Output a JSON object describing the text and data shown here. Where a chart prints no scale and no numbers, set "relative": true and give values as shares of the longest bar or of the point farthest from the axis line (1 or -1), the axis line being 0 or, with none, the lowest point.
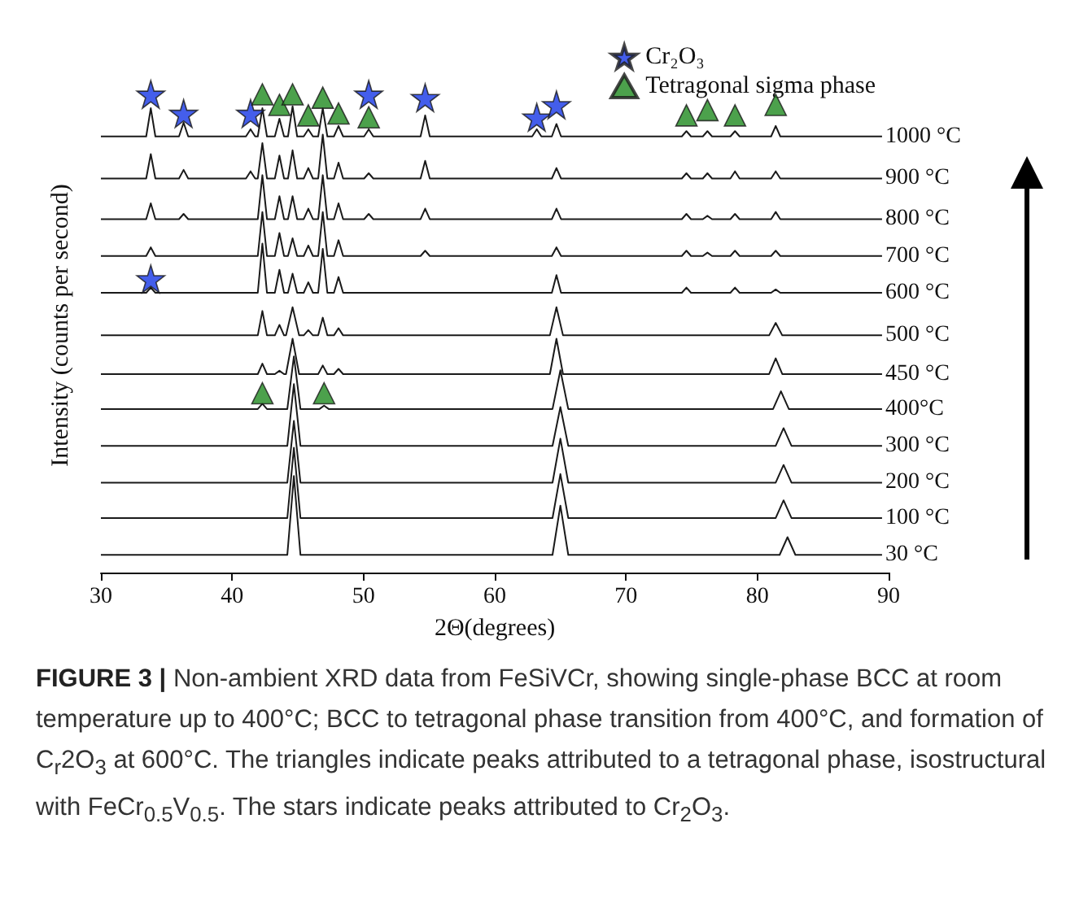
{
  "chart_data": {
    "type": "line",
    "relative": true,
    "title": "FIGURE 3 |",
    "xlabel": "2Θ(degrees)",
    "ylabel": "Intensity (counts per second)",
    "xlim": [
      30,
      90
    ],
    "xticks": [
      30,
      40,
      50,
      60,
      70,
      80,
      90
    ],
    "marker": "none",
    "legend": "top right",
    "annotations": [
      "Non-ambient XRD data from FeSiVCr, showing single-phase BCC at room temperature up to 400°C; BCC to tetragonal phase transition from 400°C, and formation of C$_{r}$2O$_{3}$ at 600°C. The triangles indicate peaks attributed to a tetragonal phase, isostructural with FeCr$_{0.5}$V$_{0.5}$. The stars indicate peaks attributed to Cr$_{2}$O$_{3}$."
    ],
    "series": [
      {
        "name": "1000 °C",
        "color": "#1a1a1a",
        "x": [
          30,
          33.45,
          33.8,
          34.15,
          35.95,
          36.3,
          36.65,
          41.05,
          41.4,
          41.75,
          41.95,
          42.3,
          42.65,
          43.25,
          43.6,
          43.95,
          44.25,
          44.6,
          44.95,
          45.45,
          45.8,
          46.15,
          46.55,
          46.9,
          47.25,
          47.75,
          48.1,
          48.45,
          50.05,
          50.4,
          50.75,
          54.35,
          54.7,
          55.05,
          62.85,
          63.2,
          63.55,
          64.35,
          64.7,
          65.05,
          74.25,
          74.6,
          74.95,
          75.85,
          76.2,
          76.55,
          77.95,
          78.3,
          78.65,
          81.05,
          81.4,
          81.75,
          89.5
        ],
        "values": [
          0.912,
          0.912,
          0.971,
          0.912,
          0.912,
          0.941,
          0.912,
          0.912,
          0.927,
          0.912,
          0.912,
          0.971,
          0.912,
          0.912,
          0.949,
          0.912,
          0.912,
          0.975,
          0.912,
          0.912,
          0.927,
          0.912,
          0.912,
          0.971,
          0.912,
          0.912,
          0.934,
          0.912,
          0.912,
          0.927,
          0.912,
          0.912,
          0.956,
          0.912,
          0.912,
          0.927,
          0.912,
          0.912,
          0.938,
          0.912,
          0.912,
          0.923,
          0.912,
          0.912,
          0.923,
          0.912,
          0.912,
          0.923,
          0.912,
          0.912,
          0.934,
          0.912,
          0.912
        ]
      },
      {
        "name": "900 °C",
        "color": "#1a1a1a",
        "x": [
          30,
          33.45,
          33.8,
          34.15,
          35.95,
          36.3,
          36.65,
          41.05,
          41.4,
          41.75,
          41.95,
          42.3,
          42.65,
          43.25,
          43.6,
          43.95,
          44.25,
          44.6,
          44.95,
          45.45,
          45.8,
          46.15,
          46.55,
          46.9,
          47.25,
          47.75,
          48.1,
          48.45,
          50.05,
          50.4,
          50.75,
          54.35,
          54.7,
          55.05,
          64.35,
          64.7,
          65.05,
          74.25,
          74.6,
          74.95,
          75.85,
          76.2,
          76.55,
          77.95,
          78.3,
          78.65,
          81.05,
          81.4,
          81.75,
          89.5
        ],
        "values": [
          0.824,
          0.824,
          0.875,
          0.824,
          0.824,
          0.842,
          0.824,
          0.824,
          0.839,
          0.824,
          0.824,
          0.898,
          0.824,
          0.824,
          0.872,
          0.824,
          0.824,
          0.883,
          0.824,
          0.824,
          0.846,
          0.824,
          0.824,
          0.916,
          0.824,
          0.824,
          0.857,
          0.824,
          0.824,
          0.835,
          0.824,
          0.824,
          0.861,
          0.824,
          0.824,
          0.846,
          0.824,
          0.824,
          0.835,
          0.824,
          0.824,
          0.835,
          0.824,
          0.824,
          0.839,
          0.824,
          0.824,
          0.839,
          0.824,
          0.824
        ]
      },
      {
        "name": "800 °C",
        "color": "#1a1a1a",
        "x": [
          30,
          33.45,
          33.8,
          34.15,
          35.95,
          36.3,
          36.65,
          41.95,
          42.3,
          42.65,
          43.25,
          43.6,
          43.95,
          44.25,
          44.6,
          44.95,
          45.45,
          45.8,
          46.15,
          46.55,
          46.9,
          47.25,
          47.75,
          48.1,
          48.45,
          50.05,
          50.4,
          50.75,
          54.35,
          54.7,
          55.05,
          64.35,
          64.7,
          65.05,
          74.25,
          74.6,
          74.95,
          75.85,
          76.2,
          76.55,
          77.95,
          78.3,
          78.65,
          81.05,
          81.4,
          81.75,
          89.5
        ],
        "values": [
          0.739,
          0.739,
          0.772,
          0.739,
          0.739,
          0.75,
          0.739,
          0.739,
          0.831,
          0.739,
          0.739,
          0.787,
          0.739,
          0.739,
          0.787,
          0.739,
          0.739,
          0.761,
          0.739,
          0.739,
          0.831,
          0.739,
          0.739,
          0.772,
          0.739,
          0.739,
          0.75,
          0.739,
          0.739,
          0.761,
          0.739,
          0.739,
          0.761,
          0.739,
          0.739,
          0.75,
          0.739,
          0.739,
          0.746,
          0.739,
          0.739,
          0.75,
          0.739,
          0.739,
          0.754,
          0.739,
          0.739
        ]
      },
      {
        "name": "700 °C",
        "color": "#1a1a1a",
        "x": [
          30,
          33.45,
          33.8,
          34.15,
          41.95,
          42.3,
          42.65,
          43.25,
          43.6,
          43.95,
          44.25,
          44.6,
          44.95,
          45.45,
          45.8,
          46.15,
          46.55,
          46.9,
          47.25,
          47.75,
          48.1,
          48.45,
          54.35,
          54.7,
          55.05,
          64.35,
          64.7,
          65.05,
          74.25,
          74.6,
          74.95,
          75.85,
          76.2,
          76.55,
          77.95,
          78.3,
          78.65,
          81.05,
          81.4,
          81.75,
          89.5
        ],
        "values": [
          0.662,
          0.662,
          0.68,
          0.662,
          0.662,
          0.754,
          0.662,
          0.662,
          0.71,
          0.662,
          0.662,
          0.699,
          0.662,
          0.662,
          0.684,
          0.662,
          0.662,
          0.754,
          0.662,
          0.662,
          0.695,
          0.662,
          0.662,
          0.673,
          0.662,
          0.662,
          0.68,
          0.662,
          0.662,
          0.673,
          0.662,
          0.662,
          0.669,
          0.662,
          0.662,
          0.673,
          0.662,
          0.662,
          0.673,
          0.662,
          0.662
        ]
      },
      {
        "name": "600 °C",
        "color": "#1a1a1a",
        "x": [
          30,
          33.45,
          33.8,
          34.15,
          41.95,
          42.3,
          42.65,
          43.25,
          43.6,
          43.95,
          44.25,
          44.6,
          44.95,
          45.45,
          45.8,
          46.15,
          46.55,
          46.9,
          47.25,
          47.75,
          48.1,
          48.45,
          64.35,
          64.7,
          65.05,
          74.25,
          74.6,
          74.95,
          77.95,
          78.3,
          78.65,
          81.05,
          81.4,
          81.75,
          89.5
        ],
        "values": [
          0.585,
          0.585,
          0.596,
          0.585,
          0.585,
          0.688,
          0.585,
          0.585,
          0.633,
          0.585,
          0.585,
          0.625,
          0.585,
          0.585,
          0.607,
          0.585,
          0.585,
          0.677,
          0.585,
          0.585,
          0.618,
          0.585,
          0.585,
          0.622,
          0.585,
          0.585,
          0.596,
          0.585,
          0.585,
          0.596,
          0.585,
          0.585,
          0.592,
          0.585,
          0.585
        ]
      },
      {
        "name": "500 °C",
        "color": "#1a1a1a",
        "x": [
          30,
          41.95,
          42.3,
          42.65,
          43.25,
          43.6,
          43.95,
          44.1,
          44.6,
          45.1,
          45.45,
          45.8,
          46.15,
          46.55,
          46.9,
          47.25,
          47.75,
          48.1,
          48.45,
          64.2,
          64.7,
          65.2,
          80.9,
          81.4,
          81.9,
          89.5
        ],
        "values": [
          0.496,
          0.496,
          0.547,
          0.496,
          0.496,
          0.518,
          0.496,
          0.496,
          0.555,
          0.496,
          0.496,
          0.507,
          0.496,
          0.496,
          0.533,
          0.496,
          0.496,
          0.511,
          0.496,
          0.496,
          0.555,
          0.496,
          0.496,
          0.522,
          0.496,
          0.496
        ]
      },
      {
        "name": "450 °C",
        "color": "#1a1a1a",
        "x": [
          30,
          41.95,
          42.3,
          42.65,
          43.25,
          43.6,
          43.95,
          44.1,
          44.6,
          45.1,
          46.55,
          46.9,
          47.25,
          47.75,
          48.1,
          48.45,
          64.2,
          64.7,
          65.2,
          80.9,
          81.4,
          81.9,
          89.5
        ],
        "values": [
          0.415,
          0.415,
          0.437,
          0.415,
          0.415,
          0.422,
          0.415,
          0.415,
          0.489,
          0.415,
          0.415,
          0.433,
          0.415,
          0.415,
          0.426,
          0.415,
          0.415,
          0.489,
          0.415,
          0.415,
          0.448,
          0.415,
          0.415
        ]
      },
      {
        "name": "400°C",
        "color": "#1a1a1a",
        "x": [
          30,
          41.95,
          42.3,
          42.65,
          44.2,
          44.7,
          45.2,
          46.65,
          47,
          47.35,
          64.4,
          65,
          65.6,
          81.2,
          81.8,
          82.4,
          89.5
        ],
        "values": [
          0.342,
          0.342,
          0.353,
          0.342,
          0.342,
          0.452,
          0.342,
          0.342,
          0.349,
          0.342,
          0.342,
          0.423,
          0.342,
          0.342,
          0.379,
          0.342,
          0.342
        ]
      },
      {
        "name": "300 °C",
        "color": "#1a1a1a",
        "x": [
          30,
          44.2,
          44.7,
          45.2,
          64.4,
          65,
          65.6,
          81.4,
          82,
          82.6,
          89.5
        ],
        "values": [
          0.265,
          0.265,
          0.394,
          0.265,
          0.265,
          0.346,
          0.265,
          0.265,
          0.302,
          0.265,
          0.265
        ]
      },
      {
        "name": "200 °C",
        "color": "#1a1a1a",
        "x": [
          30,
          44.2,
          44.7,
          45.2,
          64.4,
          65,
          65.6,
          81.4,
          82,
          82.6,
          89.5
        ],
        "values": [
          0.188,
          0.188,
          0.317,
          0.188,
          0.188,
          0.28,
          0.188,
          0.188,
          0.225,
          0.188,
          0.188
        ]
      },
      {
        "name": "100 °C",
        "color": "#1a1a1a",
        "x": [
          30,
          44.2,
          44.7,
          45.2,
          64.4,
          65,
          65.6,
          81.4,
          82,
          82.6,
          89.5
        ],
        "values": [
          0.114,
          0.114,
          0.261,
          0.114,
          0.114,
          0.206,
          0.114,
          0.114,
          0.151,
          0.114,
          0.114
        ]
      },
      {
        "name": "30 °C",
        "color": "#1a1a1a",
        "x": [
          30,
          44.2,
          44.7,
          45.2,
          64.4,
          65,
          65.6,
          81.7,
          82.3,
          82.9,
          89.5
        ],
        "values": [
          0.037,
          0.037,
          0.202,
          0.037,
          0.037,
          0.14,
          0.037,
          0.037,
          0.074,
          0.037,
          0.037
        ]
      },
      {
        "name": "Cr₂O₃",
        "type": "scatter",
        "marker": "star",
        "color": "#1536e6",
        "x": [
          33.8,
          36.3,
          41.4,
          50.4,
          54.7,
          63.2,
          64.7,
          33.8
        ],
        "values": [
          1,
          0.96,
          0.96,
          1,
          0.993,
          0.952,
          0.978,
          0.614
        ]
      },
      {
        "name": "Tetragonal sigma phase",
        "type": "scatter",
        "marker": "triangle",
        "color": "#1f8a1f",
        "x": [
          42.3,
          43.6,
          44.6,
          45.8,
          46.9,
          48.1,
          50.4,
          74.6,
          76.2,
          78.3,
          81.4,
          42.3,
          47
        ],
        "values": [
          1,
          0.978,
          1,
          0.956,
          0.993,
          0.96,
          0.952,
          0.956,
          0.967,
          0.956,
          0.978,
          0.375,
          0.375
        ]
      }
    ]
  }
}
